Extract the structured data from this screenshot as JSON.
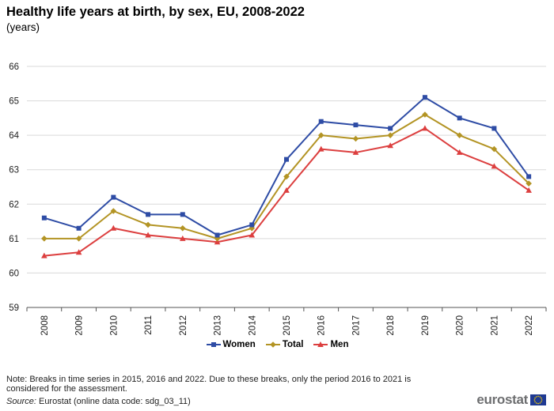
{
  "title": "Healthy life years at birth, by sex, EU, 2008-2022",
  "subtitle": "(years)",
  "chart_data": {
    "type": "line",
    "title": "Healthy life years at birth, by sex, EU, 2008-2022",
    "subtitle": "(years)",
    "x": [
      "2008",
      "2009",
      "2010",
      "2011",
      "2012",
      "2013",
      "2014",
      "2015",
      "2016",
      "2017",
      "2018",
      "2019",
      "2020",
      "2021",
      "2022"
    ],
    "series": [
      {
        "name": "Women",
        "color": "#2e4ca5",
        "marker": "square",
        "values": [
          61.6,
          61.3,
          62.2,
          61.7,
          61.7,
          61.1,
          61.4,
          63.3,
          64.4,
          64.3,
          64.2,
          65.1,
          64.5,
          64.2,
          62.8
        ]
      },
      {
        "name": "Total",
        "color": "#b39424",
        "marker": "diamond",
        "values": [
          61.0,
          61.0,
          61.8,
          61.4,
          61.3,
          61.0,
          61.3,
          62.8,
          64.0,
          63.9,
          64.0,
          64.6,
          64.0,
          63.6,
          62.6
        ]
      },
      {
        "name": "Men",
        "color": "#dc3f3f",
        "marker": "triangle",
        "values": [
          60.5,
          60.6,
          61.3,
          61.1,
          61.0,
          60.9,
          61.1,
          62.4,
          63.6,
          63.5,
          63.7,
          64.2,
          63.5,
          63.1,
          62.4
        ]
      }
    ],
    "ylim": [
      59,
      66
    ],
    "yticks": [
      59,
      60,
      61,
      62,
      63,
      64,
      65,
      66
    ],
    "grid": true,
    "legend_position": "bottom"
  },
  "note": "Note: Breaks in time series in 2015, 2016 and 2022. Due to these breaks, only the period 2016 to 2021 is considered for the assessment.",
  "source": {
    "label": "Source:",
    "text": " Eurostat (online data code: sdg_03_11)"
  },
  "logo": {
    "text": "eurostat"
  }
}
